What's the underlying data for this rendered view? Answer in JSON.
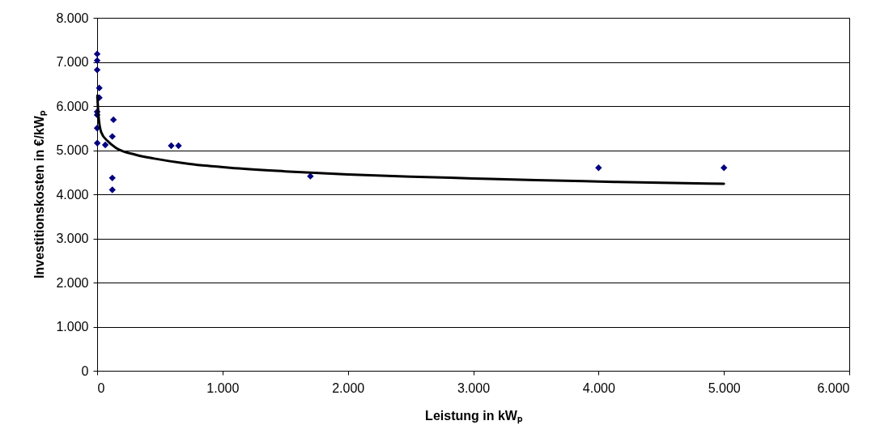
{
  "chart_data": {
    "type": "scatter",
    "xlabel": "Leistung in kWₚ",
    "ylabel": "Investitionskosten in €/kWₚ",
    "xlim": [
      0,
      6000
    ],
    "ylim": [
      0,
      8000
    ],
    "xticks": [
      0,
      {
        "value": 1000,
        "label": "1.000"
      },
      {
        "value": 2000,
        "label": "2.000"
      },
      {
        "value": 3000,
        "label": "3.000"
      },
      {
        "value": 4000,
        "label": "4.000"
      },
      {
        "value": 5000,
        "label": "5.000"
      },
      {
        "value": 6000,
        "label": "6.000"
      }
    ],
    "yticks": [
      0,
      {
        "value": 1000,
        "label": "1.000"
      },
      {
        "value": 2000,
        "label": "2.000"
      },
      {
        "value": 3000,
        "label": "3.000"
      },
      {
        "value": 4000,
        "label": "4.000"
      },
      {
        "value": 5000,
        "label": "5.000"
      },
      {
        "value": 6000,
        "label": "6.000"
      },
      {
        "value": 7000,
        "label": "7.000"
      },
      {
        "value": 8000,
        "label": "8.000"
      }
    ],
    "grid": "y",
    "marker": "diamond",
    "series": [
      {
        "color": "#000080",
        "x": [
          0,
          0,
          0,
          17,
          17,
          0,
          0,
          0,
          1,
          65,
          130,
          121,
          121,
          121,
          591,
          649,
          1701,
          4000,
          5000
        ],
        "values": [
          7180,
          7030,
          6820,
          6410,
          6190,
          5870,
          5800,
          5500,
          5160,
          5120,
          5690,
          5310,
          4370,
          4100,
          5100,
          5100,
          4410,
          4600,
          4600
        ]
      },
      {
        "type": "line",
        "marker": "none",
        "color": "#000000",
        "x": [
          2,
          10,
          32,
          86,
          150,
          303,
          455,
          736,
          1060,
          1500,
          2000,
          2500,
          3000,
          3500,
          4000,
          4500,
          5000
        ],
        "values": [
          6240,
          5800,
          5410,
          5200,
          5050,
          4900,
          4810,
          4690,
          4600,
          4520,
          4450,
          4400,
          4360,
          4320,
          4290,
          4260,
          4240
        ]
      }
    ]
  }
}
